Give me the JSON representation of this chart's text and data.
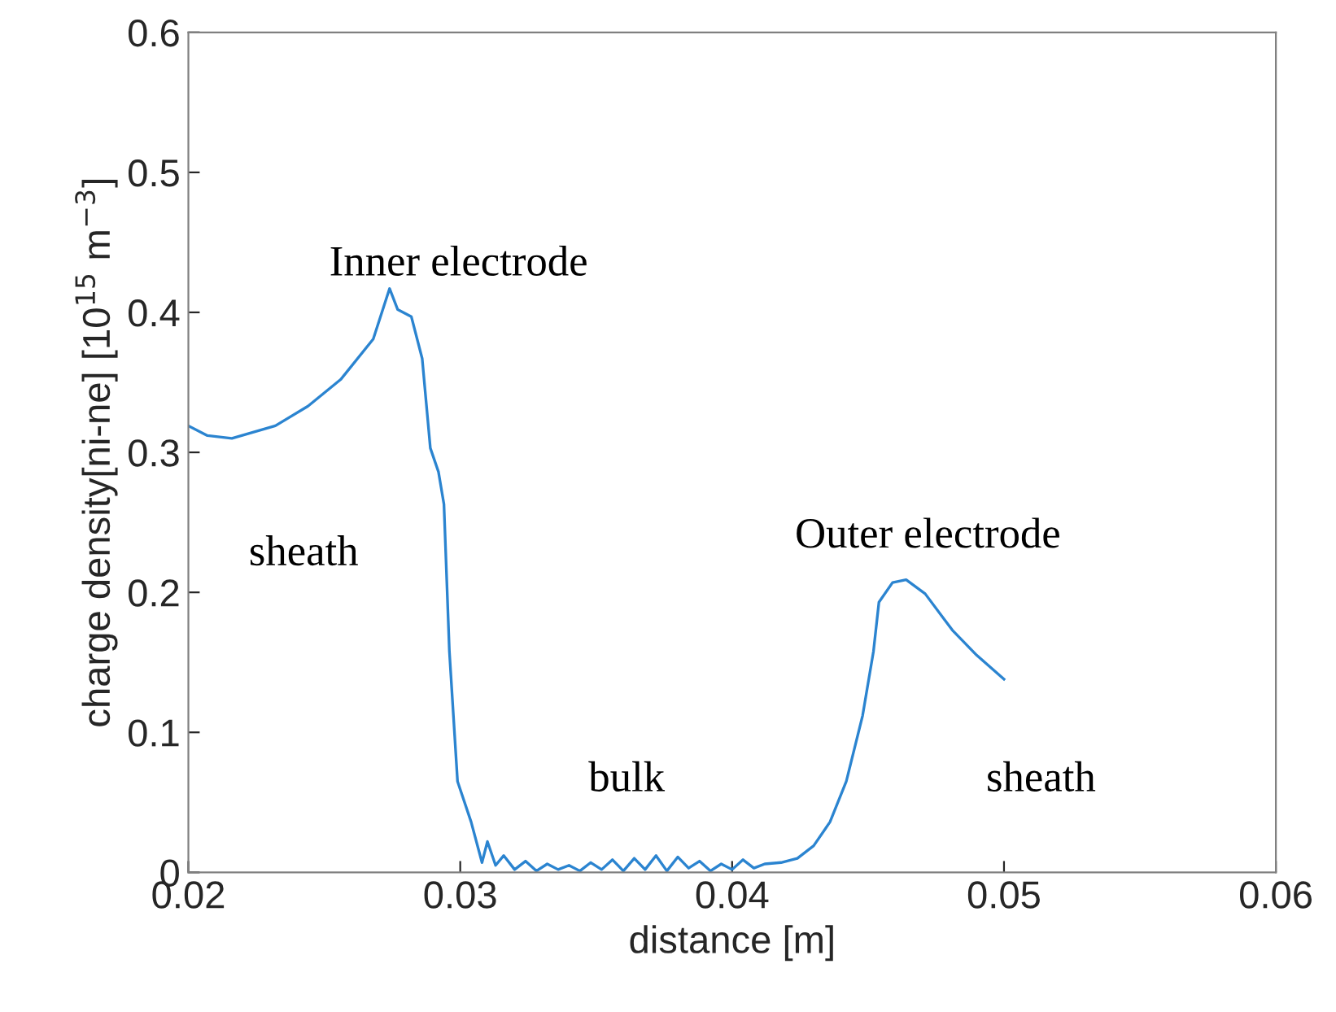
{
  "chart_data": {
    "type": "line",
    "xlabel": "distance [m]",
    "ylabel": "charge density[ni-ne] [10$^{15}$ m$^{−3}$]",
    "xlim": [
      0.02,
      0.06
    ],
    "xticks": [
      0.02,
      0.03,
      0.04,
      0.05,
      0.06
    ],
    "ylim": [
      0,
      0.6
    ],
    "yticks": [
      0,
      0.1,
      0.2,
      0.3,
      0.4,
      0.5,
      0.6
    ],
    "grid": false,
    "series": [
      {
        "color": "#2b84d0",
        "x": [
          0.02,
          0.0207,
          0.0216,
          0.0232,
          0.0244,
          0.0256,
          0.0268,
          0.0274,
          0.0277,
          0.0282,
          0.0286,
          0.0289,
          0.0292,
          0.0294,
          0.0296,
          0.0299,
          0.0304,
          0.0308,
          0.031,
          0.0313,
          0.0316,
          0.032,
          0.0324,
          0.0328,
          0.0332,
          0.0336,
          0.034,
          0.0344,
          0.0348,
          0.0352,
          0.0356,
          0.036,
          0.0364,
          0.0368,
          0.0372,
          0.0376,
          0.038,
          0.0384,
          0.0388,
          0.0392,
          0.0396,
          0.04,
          0.0404,
          0.0408,
          0.0412,
          0.0418,
          0.0424,
          0.043,
          0.0436,
          0.0442,
          0.0448,
          0.0452,
          0.0454,
          0.0459,
          0.0464,
          0.0471,
          0.0481,
          0.049,
          0.05
        ],
        "values": [
          0.319,
          0.312,
          0.31,
          0.319,
          0.333,
          0.352,
          0.381,
          0.417,
          0.402,
          0.397,
          0.367,
          0.303,
          0.286,
          0.263,
          0.158,
          0.065,
          0.036,
          0.007,
          0.022,
          0.005,
          0.012,
          0.002,
          0.008,
          0.001,
          0.006,
          0.002,
          0.005,
          0.001,
          0.007,
          0.002,
          0.009,
          0.001,
          0.01,
          0.002,
          0.012,
          0.001,
          0.011,
          0.003,
          0.008,
          0.001,
          0.006,
          0.002,
          0.009,
          0.003,
          0.006,
          0.007,
          0.01,
          0.019,
          0.036,
          0.065,
          0.112,
          0.158,
          0.193,
          0.207,
          0.209,
          0.199,
          0.173,
          0.155,
          0.138
        ]
      }
    ],
    "annotations": [
      "Inner electrode",
      "sheath",
      "bulk",
      "Outer electrode",
      "sheath"
    ]
  }
}
